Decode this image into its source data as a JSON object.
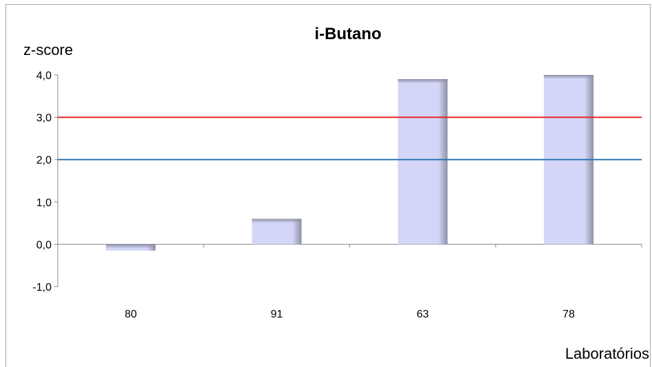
{
  "chart_data": {
    "type": "bar",
    "title": "i-Butano",
    "ylabel": "z-score",
    "xlabel": "Laboratórios",
    "categories": [
      "80",
      "91",
      "63",
      "78"
    ],
    "values": [
      -0.15,
      0.6,
      3.9,
      4.0
    ],
    "ylim": [
      -1.0,
      4.0
    ],
    "yticks": [
      -1.0,
      0.0,
      1.0,
      2.0,
      3.0,
      4.0
    ],
    "ytick_labels": [
      "-1,0",
      "0,0",
      "1,0",
      "2,0",
      "3,0",
      "4,0"
    ],
    "grid": false,
    "legend": "none",
    "reference_lines": [
      {
        "value": 3.0,
        "color": "#e32626"
      },
      {
        "value": 2.0,
        "color": "#2e75b6"
      }
    ],
    "colors": {
      "bar_fill": "#d4d6f7",
      "bar_shade": "#8e8fa6",
      "axis": "#868686"
    }
  }
}
